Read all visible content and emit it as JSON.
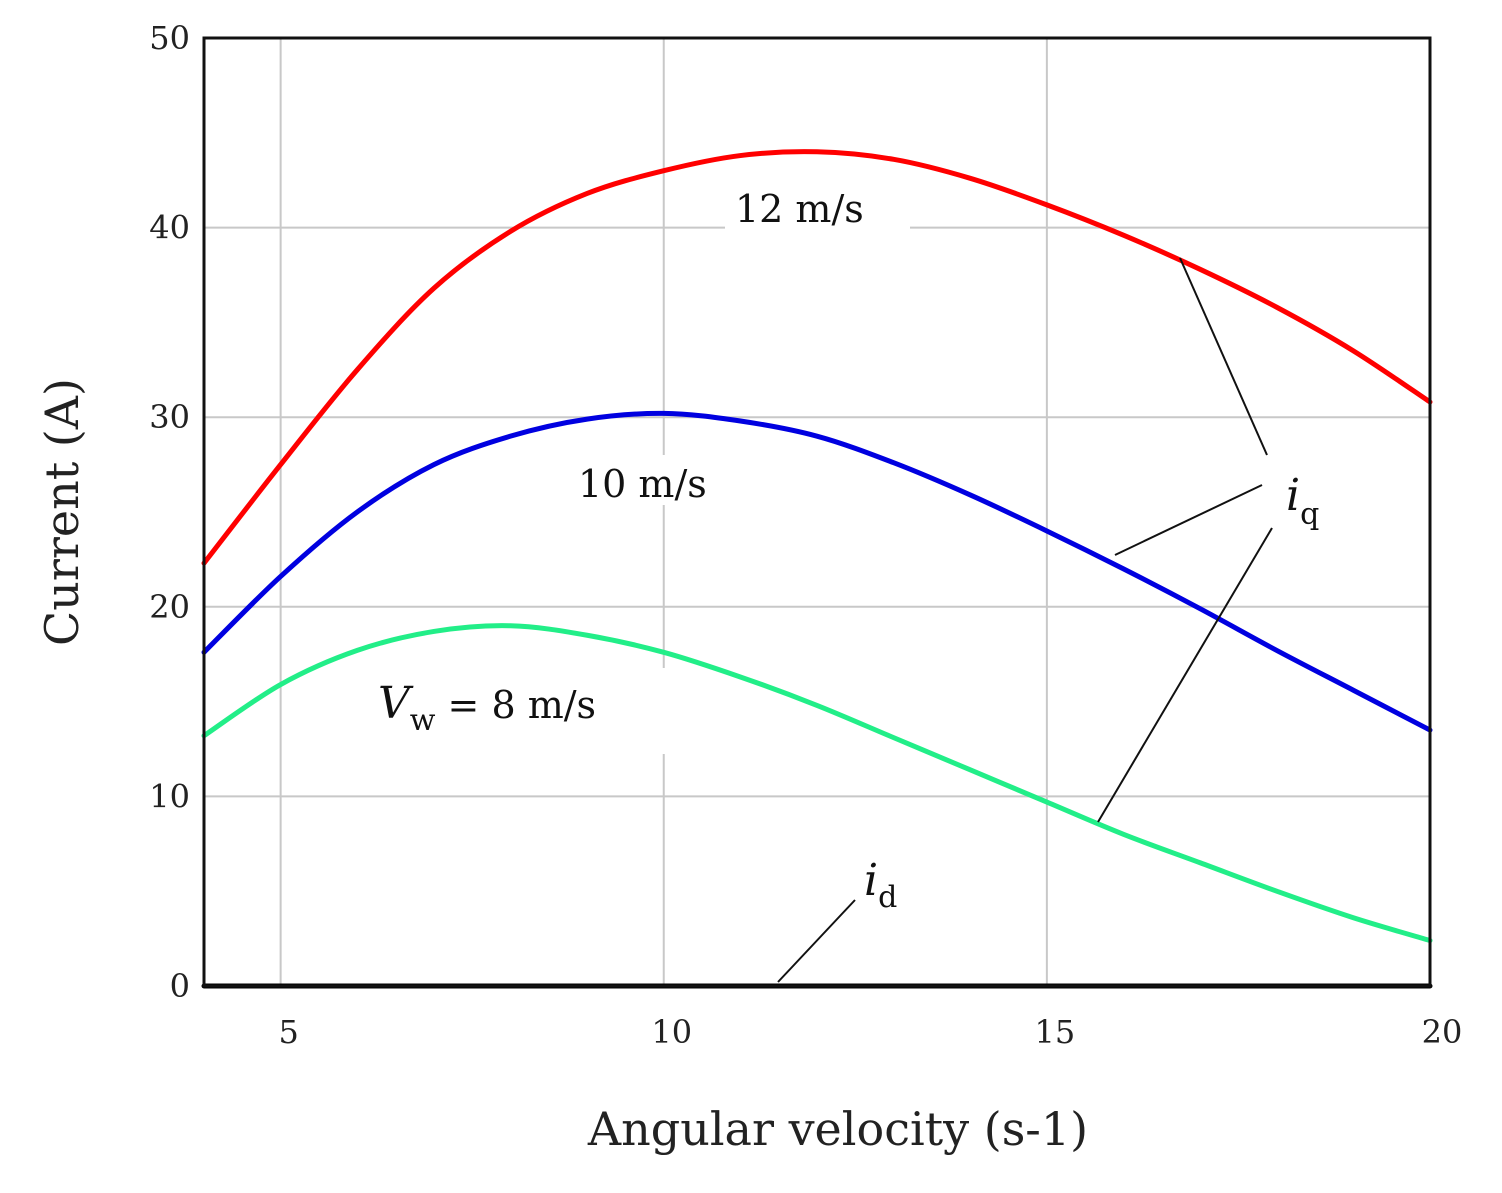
{
  "chart_data": {
    "type": "line",
    "xlabel": "Angular velocity (s-1)",
    "ylabel": "Current (A)",
    "xlim": [
      4,
      20
    ],
    "ylim": [
      0,
      50
    ],
    "x_ticks": [
      "5",
      "10",
      "15",
      "20"
    ],
    "y_ticks": [
      "0",
      "10",
      "20",
      "30",
      "40",
      "50"
    ],
    "grid": true,
    "series": [
      {
        "name": "12 m/s",
        "color": "#ff0000",
        "x": [
          4,
          5,
          6,
          7,
          8,
          9,
          10,
          11,
          12,
          13,
          14,
          15,
          16,
          17,
          18,
          19,
          20
        ],
        "y": [
          22.3,
          27.5,
          32.5,
          36.8,
          39.8,
          41.8,
          43.0,
          43.8,
          44.0,
          43.6,
          42.6,
          41.2,
          39.6,
          37.8,
          35.8,
          33.5,
          30.8
        ]
      },
      {
        "name": "10 m/s",
        "color": "#0000e0",
        "x": [
          4,
          5,
          6,
          7,
          8,
          9,
          10,
          11,
          12,
          13,
          14,
          15,
          16,
          17,
          18,
          19,
          20
        ],
        "y": [
          17.6,
          21.6,
          25.0,
          27.5,
          29.0,
          29.9,
          30.2,
          29.8,
          29.0,
          27.6,
          25.9,
          24.0,
          22.0,
          19.9,
          17.7,
          15.6,
          13.5
        ]
      },
      {
        "name": "Vw = 8 m/s",
        "color": "#22ee88",
        "x": [
          4,
          5,
          6,
          7,
          8,
          9,
          10,
          11,
          12,
          13,
          14,
          15,
          16,
          17,
          18,
          19,
          20
        ],
        "y": [
          13.2,
          15.9,
          17.7,
          18.7,
          19.0,
          18.5,
          17.6,
          16.3,
          14.8,
          13.1,
          11.4,
          9.7,
          8.0,
          6.5,
          5.0,
          3.6,
          2.4
        ]
      },
      {
        "name": "id",
        "color": "#000000",
        "x": [
          4,
          20
        ],
        "y": [
          0,
          0
        ]
      }
    ],
    "annotations": {
      "label_12": "12 m/s",
      "label_10": "10 m/s",
      "label_8_var": "V",
      "label_8_sub": "w",
      "label_8_rest": " = 8 m/s",
      "iq_var": "i",
      "iq_sub": "q",
      "id_var": "i",
      "id_sub": "d"
    }
  }
}
